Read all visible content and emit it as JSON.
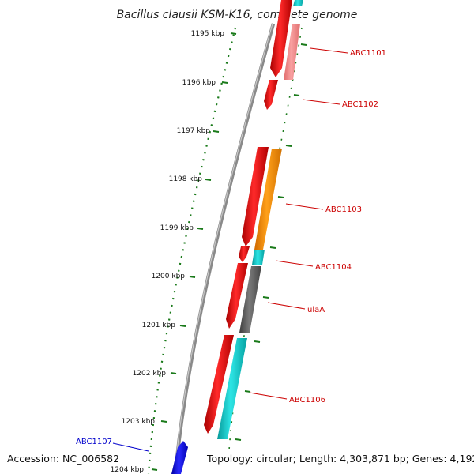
{
  "title": "Bacillus clausii KSM-K16, complete genome",
  "footer": {
    "accession": "Accession: NC_006582",
    "topology": "Topology: circular; Length: 4,303,871 bp; Genes: 4,192"
  },
  "colors": {
    "backbone": "#8a8a8a",
    "ticks": "#1a7a1a",
    "label_red": "#cc0000",
    "label_blue": "#0000cc",
    "cds_red": "#ee1111",
    "cds_blue": "#0000ee",
    "cyan": "#11cccc",
    "orange": "#ff8c00",
    "gray": "#666666",
    "pink": "#f08080"
  },
  "kbp_ticks": [
    "1195 kbp",
    "1196 kbp",
    "1197 kbp",
    "1198 kbp",
    "1199 kbp",
    "1200 kbp",
    "1201 kbp",
    "1202 kbp",
    "1203 kbp",
    "1204 kbp"
  ],
  "gene_labels": [
    {
      "text": "ABC1101",
      "color": "red"
    },
    {
      "text": "ABC1102",
      "color": "red"
    },
    {
      "text": "ABC1103",
      "color": "red"
    },
    {
      "text": "ABC1104",
      "color": "red"
    },
    {
      "text": "ulaA",
      "color": "red"
    },
    {
      "text": "ABC1106",
      "color": "red"
    },
    {
      "text": "ABC1107",
      "color": "blue"
    }
  ]
}
